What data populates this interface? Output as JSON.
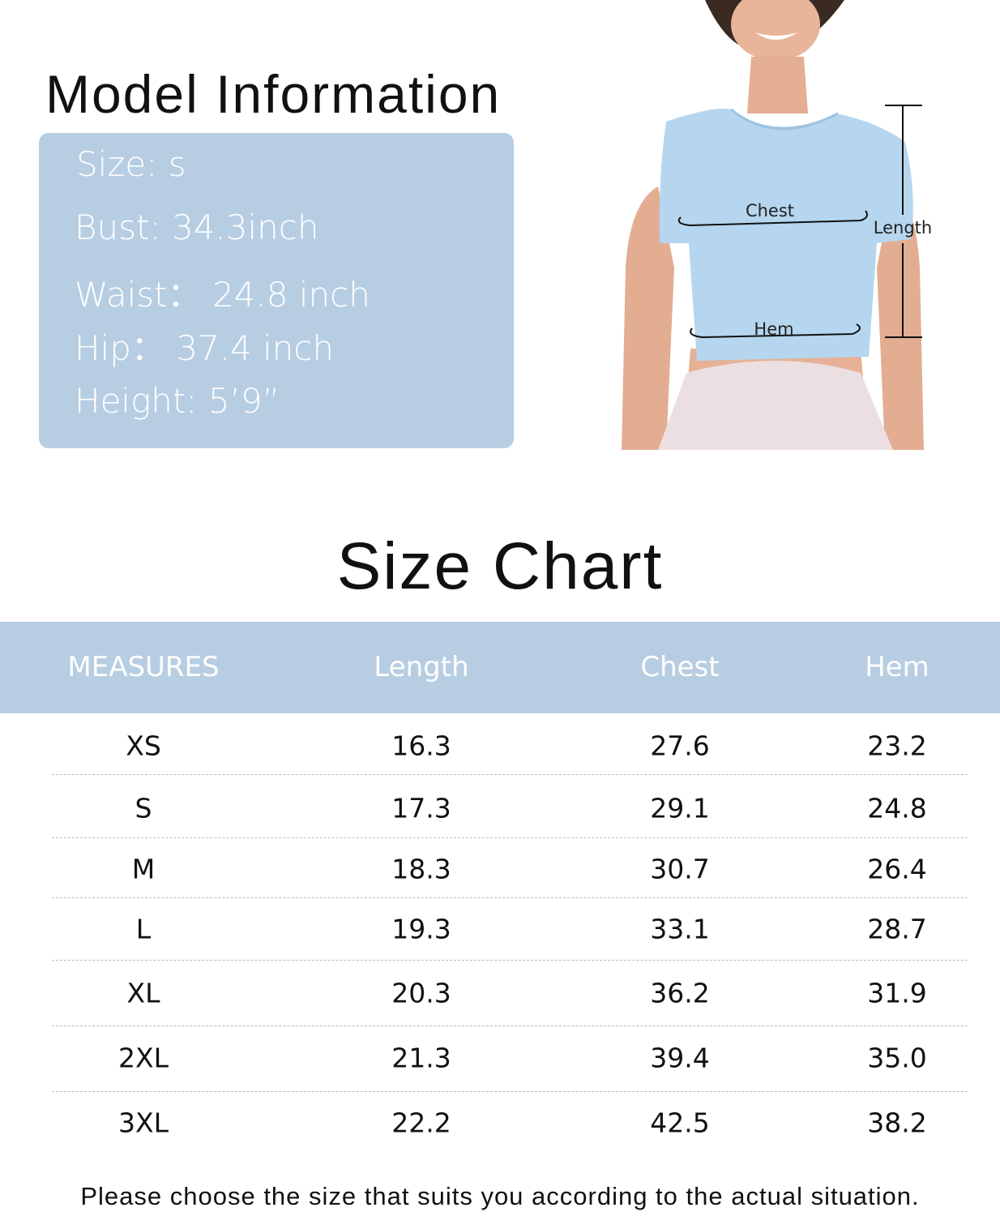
{
  "model_info": {
    "title": "Model Information",
    "lines": [
      "Size:  s",
      "Bust:  34.3inch",
      "Waist： 24.8 inch",
      "Hip： 37.4 inch",
      "Height:  5’9”"
    ],
    "box_color": "#b7cde2"
  },
  "diagram": {
    "chest_label": "Chest",
    "hem_label": "Hem",
    "length_label": "Length"
  },
  "size_chart": {
    "title": "Size Chart",
    "headers": [
      "MEASURES",
      "Length",
      "Chest",
      "Hem"
    ],
    "rows": [
      [
        "XS",
        "16.3",
        "27.6",
        "23.2"
      ],
      [
        "S",
        "17.3",
        "29.1",
        "24.8"
      ],
      [
        "M",
        "18.3",
        "30.7",
        "26.4"
      ],
      [
        "L",
        "19.3",
        "33.1",
        "28.7"
      ],
      [
        "XL",
        "20.3",
        "36.2",
        "31.9"
      ],
      [
        "2XL",
        "21.3",
        "39.4",
        "35.0"
      ],
      [
        "3XL",
        "22.2",
        "42.5",
        "38.2"
      ]
    ],
    "header_color": "#b7cde2"
  },
  "note": "Please choose the size that suits you according to the actual situation."
}
